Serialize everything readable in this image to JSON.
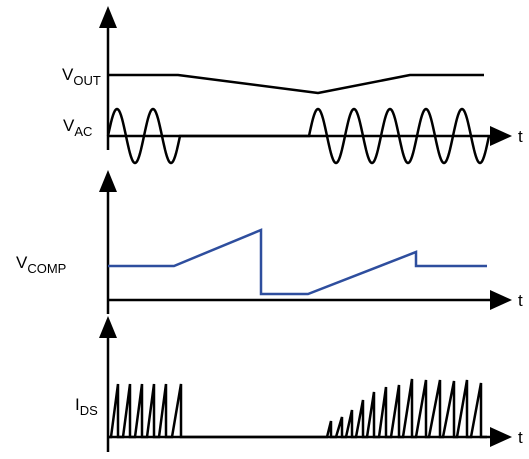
{
  "signals": {
    "vout": {
      "main": "V",
      "sub": "OUT"
    },
    "vac": {
      "main": "V",
      "sub": "AC"
    },
    "vcomp": {
      "main": "V",
      "sub": "COMP"
    },
    "ids": {
      "main": "I",
      "sub": "DS"
    }
  },
  "axes": {
    "time_label": "t"
  },
  "colors": {
    "ink": "#000000",
    "vcomp_trace": "#2e4e9e",
    "background": "#ffffff"
  }
}
